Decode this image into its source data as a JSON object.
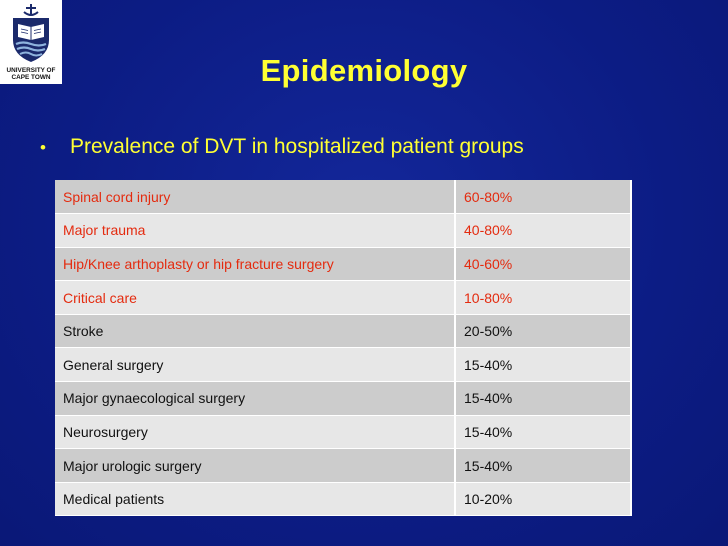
{
  "logo": {
    "line1": "UNIVERSITY OF",
    "line2": "CAPE TOWN"
  },
  "slide": {
    "title": "Epidemiology",
    "bullet": "Prevalence of DVT in hospitalized patient groups"
  },
  "table": {
    "rows": [
      {
        "group": "Spinal cord injury",
        "prevalence": "60-80%"
      },
      {
        "group": "Major trauma",
        "prevalence": "40-80%"
      },
      {
        "group": "Hip/Knee arthoplasty or hip fracture surgery",
        "prevalence": "40-60%"
      },
      {
        "group": "Critical care",
        "prevalence": "10-80%"
      },
      {
        "group": "Stroke",
        "prevalence": "20-50%"
      },
      {
        "group": "General surgery",
        "prevalence": "15-40%"
      },
      {
        "group": "Major gynaecological surgery",
        "prevalence": "15-40%"
      },
      {
        "group": "Neurosurgery",
        "prevalence": "15-40%"
      },
      {
        "group": "Major urologic surgery",
        "prevalence": "15-40%"
      },
      {
        "group": "Medical patients",
        "prevalence": "10-20%"
      }
    ],
    "highlight_color": "#e42b0f",
    "text_color": "#111111"
  }
}
